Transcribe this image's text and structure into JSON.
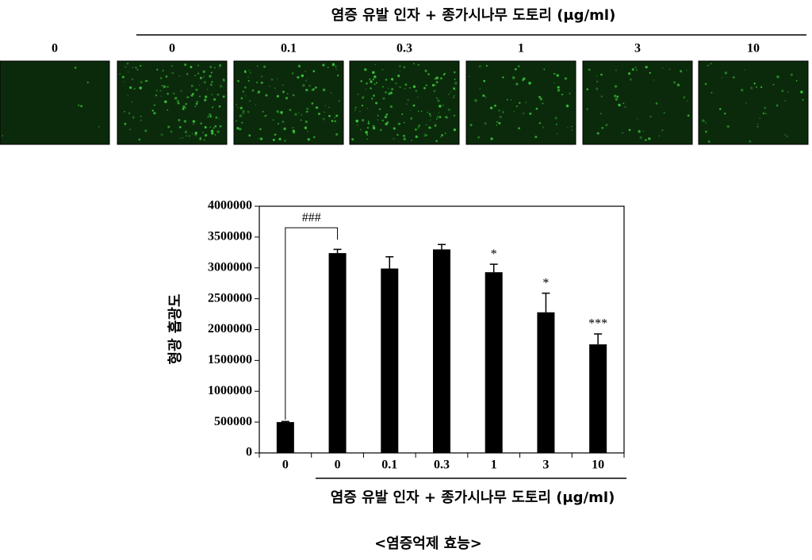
{
  "header": {
    "title": "염증 유발 인자 + 종가시나무 도토리 (μg/ml)"
  },
  "chart_data": {
    "type": "bar",
    "y_label": "형광 흡광도",
    "categories": [
      "0",
      "0",
      "0.1",
      "0.3",
      "1",
      "3",
      "10"
    ],
    "values": [
      500000,
      3240000,
      2990000,
      3300000,
      2930000,
      2280000,
      1760000
    ],
    "errors": [
      10000,
      60000,
      190000,
      80000,
      130000,
      310000,
      170000
    ],
    "significance": [
      null,
      null,
      null,
      null,
      "*",
      "*",
      "***"
    ],
    "bracket_label": "###",
    "group_label": "염증 유발 인자 + 종가시나무 도토리 (μg/ml)",
    "color": "#000000",
    "ylim": [
      0,
      4000000
    ],
    "yticks": [
      0,
      500000,
      1000000,
      1500000,
      2000000,
      2500000,
      3000000,
      3500000,
      4000000
    ]
  },
  "caption": "<염증억제 효능>"
}
